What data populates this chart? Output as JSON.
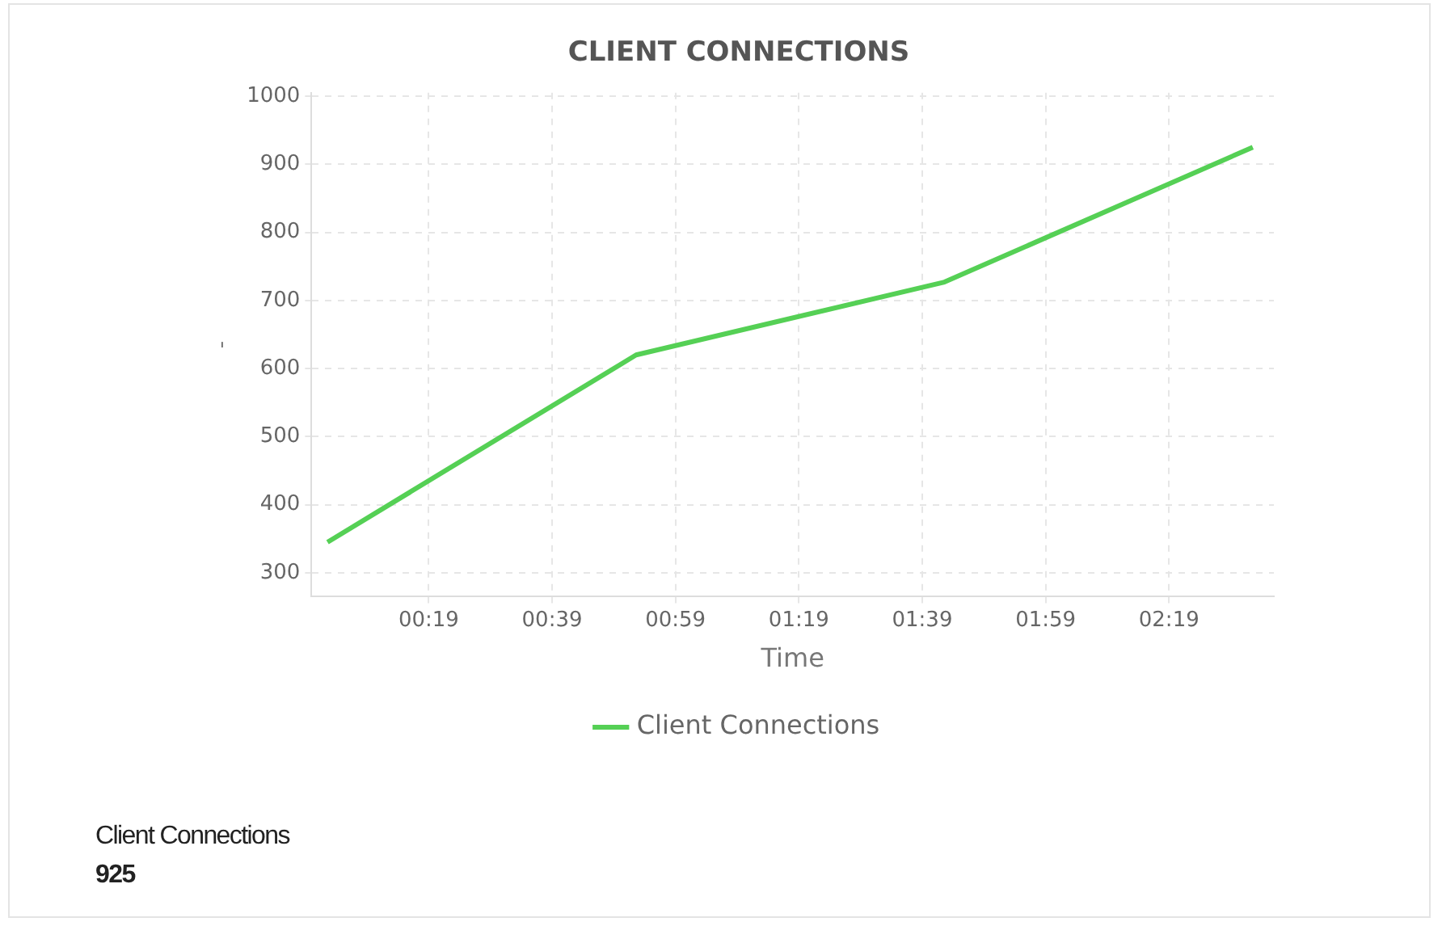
{
  "chart_data": {
    "type": "line",
    "title": "CLIENT CONNECTIONS",
    "xlabel": "Time",
    "ylabel": "-",
    "x": [
      0.0433,
      0.877,
      1.71,
      2.543
    ],
    "series": [
      {
        "name": "Client Connections",
        "color": "#55d055",
        "values": [
          345,
          620,
          727,
          925
        ]
      }
    ],
    "xlim": [
      0,
      2.6
    ],
    "xticks": [
      {
        "value": 0.31667,
        "label": "00:19"
      },
      {
        "value": 0.65,
        "label": "00:39"
      },
      {
        "value": 0.98333,
        "label": "00:59"
      },
      {
        "value": 1.31667,
        "label": "01:19"
      },
      {
        "value": 1.65,
        "label": "01:39"
      },
      {
        "value": 1.98333,
        "label": "01:59"
      },
      {
        "value": 2.31667,
        "label": "02:19"
      }
    ],
    "ylim": [
      265,
      1005
    ],
    "yticks": [
      300,
      400,
      500,
      600,
      700,
      800,
      900,
      1000
    ],
    "grid": true,
    "legend": "bottom",
    "marker": "none",
    "line_style": "solid",
    "annotations": [
      "Client Connections",
      "925"
    ]
  }
}
